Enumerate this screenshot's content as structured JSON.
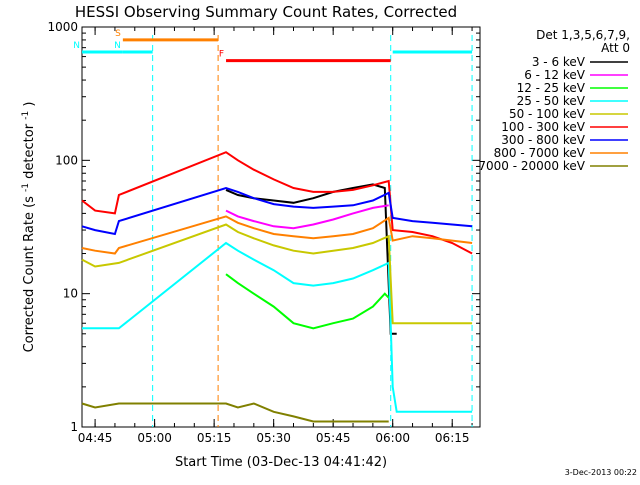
{
  "colors": {
    "3_6": "#000000",
    "6_12": "#ff00ff",
    "12_25": "#00ff00",
    "25_50": "#00ffff",
    "50_100": "#c8c800",
    "100_300": "#ff0000",
    "300_800": "#0000ff",
    "800_7000": "#ff8000",
    "7000_20000": "#808000"
  },
  "chart_data": {
    "type": "line",
    "title": "HESSI Observing Summary Count Rates, Corrected",
    "xlabel": "Start Time (03-Dec-13 04:41:42)",
    "ylabel": "Corrected Count Rate (s",
    "ylabel_sup1": "-1",
    "ylabel_mid": " detector",
    "ylabel_sup2": "-1",
    "ylabel_end": ")",
    "y_scale": "log",
    "ylim": [
      1,
      1000
    ],
    "xlim": [
      "04:41:42",
      "06:22:00"
    ],
    "x_ticks": [
      "04:45",
      "05:00",
      "05:15",
      "05:30",
      "05:45",
      "06:00",
      "06:15"
    ],
    "y_ticks": [
      "1",
      "10",
      "100",
      "1000"
    ],
    "legend_title1": "Det 1,3,5,6,7,9,",
    "legend_title2": "Att 0",
    "legend_placement": "right",
    "timestamp": "3-Dec-2013 00:22",
    "flags": [
      {
        "label": "S",
        "color": "#ff8000",
        "start": "04:52:00",
        "end": "05:16:00",
        "level": 800
      },
      {
        "label": "N",
        "color": "#00ffff",
        "start": "04:41:42",
        "end": "04:52:00",
        "level": 650
      },
      {
        "label": "N",
        "color": "#00ffff",
        "start": "04:52:00",
        "end": "04:59:30",
        "level": 650
      },
      {
        "label": "F",
        "color": "#ff0000",
        "start": "05:18:00",
        "end": "05:59:30",
        "level": 560
      },
      {
        "label": "",
        "color": "#00ffff",
        "start": "06:00:00",
        "end": "06:20:00",
        "level": 650
      }
    ],
    "vlines": [
      {
        "time": "04:59:30",
        "color": "#00ffff"
      },
      {
        "time": "05:16:00",
        "color": "#ff8000"
      },
      {
        "time": "05:59:30",
        "color": "#00ffff"
      },
      {
        "time": "06:20:00",
        "color": "#00ffff"
      }
    ],
    "series": [
      {
        "name": "3 - 6 keV",
        "color_key": "3_6",
        "points": [
          [
            "05:18",
            60
          ],
          [
            "05:21",
            55
          ],
          [
            "05:25",
            52
          ],
          [
            "05:30",
            50
          ],
          [
            "05:35",
            48
          ],
          [
            "05:40",
            52
          ],
          [
            "05:45",
            58
          ],
          [
            "05:50",
            62
          ],
          [
            "05:55",
            66
          ],
          [
            "05:58",
            62
          ],
          [
            "05:59:30",
            5
          ],
          [
            "06:01",
            5
          ]
        ]
      },
      {
        "name": "6 - 12 keV",
        "color_key": "6_12",
        "points": [
          [
            "05:18",
            42
          ],
          [
            "05:21",
            38
          ],
          [
            "05:25",
            35
          ],
          [
            "05:30",
            32
          ],
          [
            "05:35",
            31
          ],
          [
            "05:40",
            33
          ],
          [
            "05:45",
            36
          ],
          [
            "05:50",
            40
          ],
          [
            "05:55",
            44
          ],
          [
            "05:59",
            46
          ]
        ]
      },
      {
        "name": "12 - 25 keV",
        "color_key": "12_25",
        "points": [
          [
            "05:18",
            14
          ],
          [
            "05:21",
            12
          ],
          [
            "05:25",
            10
          ],
          [
            "05:30",
            8
          ],
          [
            "05:35",
            6
          ],
          [
            "05:40",
            5.5
          ],
          [
            "05:45",
            6
          ],
          [
            "05:50",
            6.5
          ],
          [
            "05:55",
            8
          ],
          [
            "05:58",
            10
          ],
          [
            "05:59:30",
            9
          ]
        ]
      },
      {
        "name": "25 - 50 keV",
        "color_key": "25_50",
        "points": [
          [
            "04:41:42",
            5.5
          ],
          [
            "04:45",
            5.5
          ],
          [
            "04:51",
            5.5
          ],
          [
            "05:18",
            24
          ],
          [
            "05:21",
            21
          ],
          [
            "05:25",
            18
          ],
          [
            "05:30",
            15
          ],
          [
            "05:35",
            12
          ],
          [
            "05:40",
            11.5
          ],
          [
            "05:45",
            12
          ],
          [
            "05:50",
            13
          ],
          [
            "05:55",
            15
          ],
          [
            "05:59",
            17
          ],
          [
            "06:00",
            2
          ],
          [
            "06:01",
            1.3
          ],
          [
            "06:20",
            1.3
          ]
        ]
      },
      {
        "name": "50 - 100 keV",
        "color_key": "50_100",
        "points": [
          [
            "04:41:42",
            18
          ],
          [
            "04:45",
            16
          ],
          [
            "04:51",
            17
          ],
          [
            "05:18",
            33
          ],
          [
            "05:21",
            29
          ],
          [
            "05:25",
            26
          ],
          [
            "05:30",
            23
          ],
          [
            "05:35",
            21
          ],
          [
            "05:40",
            20
          ],
          [
            "05:45",
            21
          ],
          [
            "05:50",
            22
          ],
          [
            "05:55",
            24
          ],
          [
            "05:59",
            27
          ],
          [
            "06:00",
            6
          ],
          [
            "06:05",
            6
          ],
          [
            "06:10",
            6
          ],
          [
            "06:15",
            6
          ],
          [
            "06:20",
            6
          ]
        ]
      },
      {
        "name": "100 - 300 keV",
        "color_key": "100_300",
        "points": [
          [
            "04:41:42",
            50
          ],
          [
            "04:45",
            42
          ],
          [
            "04:50",
            40
          ],
          [
            "04:51",
            55
          ],
          [
            "05:18",
            115
          ],
          [
            "05:21",
            100
          ],
          [
            "05:25",
            85
          ],
          [
            "05:30",
            72
          ],
          [
            "05:35",
            62
          ],
          [
            "05:40",
            58
          ],
          [
            "05:45",
            58
          ],
          [
            "05:50",
            60
          ],
          [
            "05:55",
            65
          ],
          [
            "05:59",
            70
          ],
          [
            "06:00",
            30
          ],
          [
            "06:05",
            29
          ],
          [
            "06:10",
            27
          ],
          [
            "06:15",
            24
          ],
          [
            "06:20",
            20
          ]
        ]
      },
      {
        "name": "300 - 800 keV",
        "color_key": "300_800",
        "points": [
          [
            "04:41:42",
            32
          ],
          [
            "04:45",
            30
          ],
          [
            "04:50",
            28
          ],
          [
            "04:51",
            35
          ],
          [
            "05:18",
            62
          ],
          [
            "05:21",
            58
          ],
          [
            "05:25",
            52
          ],
          [
            "05:30",
            47
          ],
          [
            "05:35",
            45
          ],
          [
            "05:40",
            44
          ],
          [
            "05:45",
            45
          ],
          [
            "05:50",
            46
          ],
          [
            "05:55",
            50
          ],
          [
            "05:59",
            57
          ],
          [
            "06:00",
            37
          ],
          [
            "06:05",
            35
          ],
          [
            "06:10",
            34
          ],
          [
            "06:15",
            33
          ],
          [
            "06:20",
            32
          ]
        ]
      },
      {
        "name": "800 - 7000 keV",
        "color_key": "800_7000",
        "points": [
          [
            "04:41:42",
            22
          ],
          [
            "04:45",
            21
          ],
          [
            "04:50",
            20
          ],
          [
            "04:51",
            22
          ],
          [
            "05:18",
            38
          ],
          [
            "05:21",
            34
          ],
          [
            "05:25",
            31
          ],
          [
            "05:30",
            28
          ],
          [
            "05:35",
            27
          ],
          [
            "05:40",
            26
          ],
          [
            "05:45",
            27
          ],
          [
            "05:50",
            28
          ],
          [
            "05:55",
            31
          ],
          [
            "05:59",
            37
          ],
          [
            "06:00",
            25
          ],
          [
            "06:05",
            27
          ],
          [
            "06:10",
            26
          ],
          [
            "06:15",
            25
          ],
          [
            "06:20",
            24
          ]
        ]
      },
      {
        "name": "7000 - 20000 keV",
        "color_key": "7000_20000",
        "points": [
          [
            "04:41:42",
            1.5
          ],
          [
            "04:45",
            1.4
          ],
          [
            "04:51",
            1.5
          ],
          [
            "05:18",
            1.5
          ],
          [
            "05:21",
            1.4
          ],
          [
            "05:25",
            1.5
          ],
          [
            "05:30",
            1.3
          ],
          [
            "05:35",
            1.2
          ],
          [
            "05:40",
            1.1
          ],
          [
            "05:45",
            1.1
          ],
          [
            "05:50",
            1.1
          ],
          [
            "05:55",
            1.1
          ],
          [
            "05:59",
            1.1
          ]
        ]
      }
    ]
  }
}
